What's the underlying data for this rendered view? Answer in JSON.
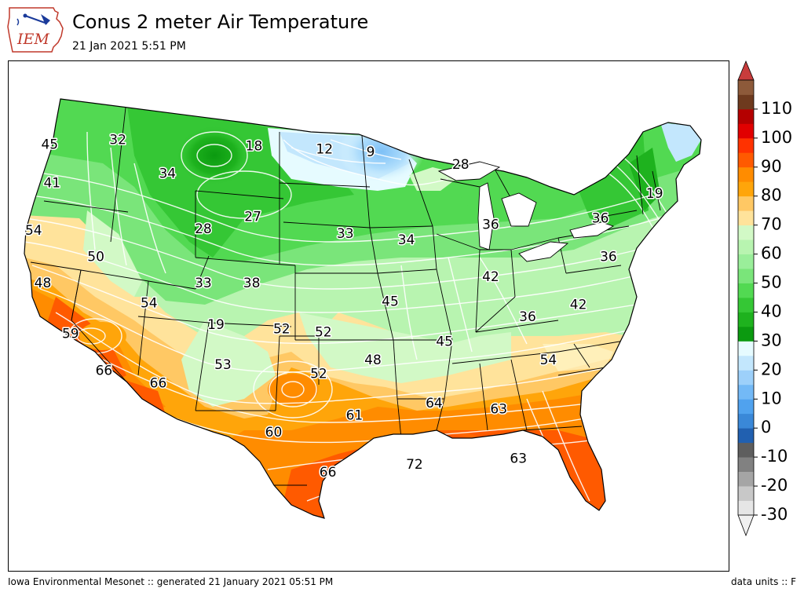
{
  "header": {
    "logo_text": "IEM",
    "title": "Conus 2 meter Air Temperature",
    "subtitle": "21 Jan 2021 5:51 PM"
  },
  "footer": {
    "left": "Iowa Environmental Mesonet :: generated 21 January 2021 05:51 PM",
    "right": "data units :: F"
  },
  "colorbar": {
    "tick_labels": [
      "-30",
      "-20",
      "-10",
      "0",
      "10",
      "20",
      "30",
      "40",
      "50",
      "60",
      "70",
      "80",
      "90",
      "100",
      "110"
    ],
    "tick_values": [
      -30,
      -20,
      -10,
      0,
      10,
      20,
      30,
      40,
      50,
      60,
      70,
      80,
      90,
      100,
      110
    ],
    "range": [
      -30,
      120
    ],
    "step": 5,
    "extend": "both",
    "colors": [
      "#e6e6e6",
      "#c8c8c8",
      "#a5a5a5",
      "#818181",
      "#5e5e5e",
      "#2160b0",
      "#3a88d8",
      "#50a2ee",
      "#73b9f6",
      "#9dd0fa",
      "#c3e7fd",
      "#e6fbff",
      "#0b9a10",
      "#1eb21e",
      "#35c735",
      "#52d952",
      "#7ae57a",
      "#9aee9a",
      "#b8f4b0",
      "#d2f9c6",
      "#ffe39b",
      "#ffc864",
      "#ffa50a",
      "#ff8c00",
      "#ff5a00",
      "#ff3200",
      "#e10000",
      "#b40000",
      "#6e3a1e",
      "#8d5a3a",
      "#a8784f",
      "#c49a70",
      "#dcbfa0",
      "#f3d8cc",
      "#ffc0bc",
      "#f4b08a",
      "#e06a6a",
      "#cf4a4a"
    ],
    "under_color": "#f0f0f0",
    "over_color": "#c83c3c"
  },
  "station_values": [
    {
      "label": "45",
      "lon": -122.8,
      "lat": 47.9
    },
    {
      "label": "32",
      "lon": -116.9,
      "lat": 48.2
    },
    {
      "label": "18",
      "lon": -105.1,
      "lat": 47.8
    },
    {
      "label": "12",
      "lon": -99.0,
      "lat": 47.6
    },
    {
      "label": "9",
      "lon": -95.0,
      "lat": 47.4
    },
    {
      "label": "28",
      "lon": -87.2,
      "lat": 46.6
    },
    {
      "label": "19",
      "lon": -70.4,
      "lat": 44.7
    },
    {
      "label": "41",
      "lon": -122.6,
      "lat": 45.4
    },
    {
      "label": "34",
      "lon": -112.6,
      "lat": 46.0
    },
    {
      "label": "36",
      "lon": -75.1,
      "lat": 43.1
    },
    {
      "label": "54",
      "lon": -124.2,
      "lat": 42.3
    },
    {
      "label": "27",
      "lon": -105.2,
      "lat": 43.2
    },
    {
      "label": "28",
      "lon": -109.5,
      "lat": 42.4
    },
    {
      "label": "33",
      "lon": -97.2,
      "lat": 42.1
    },
    {
      "label": "34",
      "lon": -91.9,
      "lat": 41.7
    },
    {
      "label": "36",
      "lon": -84.6,
      "lat": 42.7
    },
    {
      "label": "36",
      "lon": -74.4,
      "lat": 40.6
    },
    {
      "label": "50",
      "lon": -118.8,
      "lat": 40.6
    },
    {
      "label": "48",
      "lon": -123.4,
      "lat": 38.9
    },
    {
      "label": "33",
      "lon": -109.5,
      "lat": 38.9
    },
    {
      "label": "38",
      "lon": -105.3,
      "lat": 38.9
    },
    {
      "label": "42",
      "lon": -84.6,
      "lat": 39.3
    },
    {
      "label": "54",
      "lon": -114.2,
      "lat": 37.6
    },
    {
      "label": "45",
      "lon": -93.3,
      "lat": 37.7
    },
    {
      "label": "42",
      "lon": -77.0,
      "lat": 37.5
    },
    {
      "label": "59",
      "lon": -121.0,
      "lat": 35.6
    },
    {
      "label": "19",
      "lon": -108.4,
      "lat": 36.2
    },
    {
      "label": "52",
      "lon": -102.7,
      "lat": 35.9
    },
    {
      "label": "52",
      "lon": -99.1,
      "lat": 35.7
    },
    {
      "label": "36",
      "lon": -81.4,
      "lat": 36.7
    },
    {
      "label": "45",
      "lon": -88.6,
      "lat": 35.1
    },
    {
      "label": "66",
      "lon": -118.1,
      "lat": 33.2
    },
    {
      "label": "66",
      "lon": -113.4,
      "lat": 32.4
    },
    {
      "label": "53",
      "lon": -107.8,
      "lat": 33.6
    },
    {
      "label": "48",
      "lon": -94.8,
      "lat": 33.9
    },
    {
      "label": "52",
      "lon": -99.5,
      "lat": 33.0
    },
    {
      "label": "54",
      "lon": -79.6,
      "lat": 33.9
    },
    {
      "label": "60",
      "lon": -103.4,
      "lat": 29.2
    },
    {
      "label": "61",
      "lon": -96.4,
      "lat": 30.3
    },
    {
      "label": "64",
      "lon": -89.5,
      "lat": 31.1
    },
    {
      "label": "63",
      "lon": -83.9,
      "lat": 30.7
    },
    {
      "label": "66",
      "lon": -98.7,
      "lat": 26.6
    },
    {
      "label": "72",
      "lon": -91.2,
      "lat": 27.1
    },
    {
      "label": "63",
      "lon": -82.2,
      "lat": 27.5
    }
  ]
}
